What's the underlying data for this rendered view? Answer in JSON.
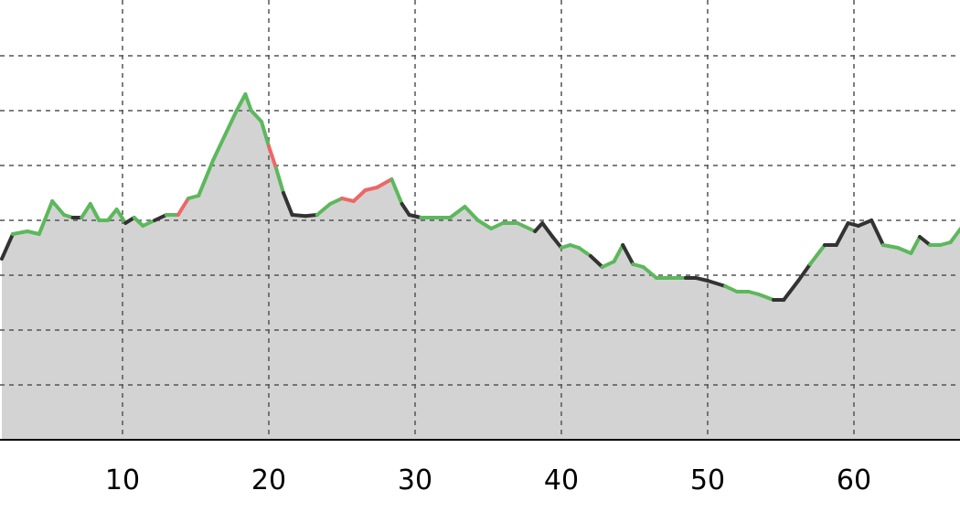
{
  "chart_data": {
    "type": "area",
    "title": "",
    "xlabel": "",
    "ylabel": "",
    "xlim": [
      1.75,
      67.3
    ],
    "ylim": [
      0,
      8
    ],
    "x_ticks": [
      10,
      20,
      30,
      40,
      50,
      60
    ],
    "x_tick_labels": [
      "10",
      "20",
      "30",
      "40",
      "50",
      "60"
    ],
    "grid": true,
    "legend": "none",
    "colors": {
      "area_fill": "#d3d3d3",
      "line_neutral": "#333333",
      "line_green": "#5cb85c",
      "line_red": "#ee6666",
      "axis": "#000000",
      "grid": "#555555"
    },
    "series": [
      {
        "values": [
          [
            1.75,
            3.3,
            "k"
          ],
          [
            2.5,
            3.75,
            "k"
          ],
          [
            3.5,
            3.8,
            "g"
          ],
          [
            4.3,
            3.75,
            "g"
          ],
          [
            5.2,
            4.35,
            "g"
          ],
          [
            6.0,
            4.1,
            "g"
          ],
          [
            6.6,
            4.05,
            "g"
          ],
          [
            7.2,
            4.05,
            "k"
          ],
          [
            7.8,
            4.3,
            "g"
          ],
          [
            8.4,
            4.0,
            "g"
          ],
          [
            9.0,
            4.0,
            "g"
          ],
          [
            9.6,
            4.2,
            "g"
          ],
          [
            10.2,
            3.95,
            "g"
          ],
          [
            10.8,
            4.05,
            "k"
          ],
          [
            11.4,
            3.9,
            "g"
          ],
          [
            12.2,
            4.0,
            "g"
          ],
          [
            13.0,
            4.1,
            "k"
          ],
          [
            13.8,
            4.1,
            "g"
          ],
          [
            14.5,
            4.4,
            "r"
          ],
          [
            15.2,
            4.45,
            "g"
          ],
          [
            16.2,
            5.1,
            "g"
          ],
          [
            17.0,
            5.55,
            "g"
          ],
          [
            17.8,
            6.0,
            "g"
          ],
          [
            18.4,
            6.3,
            "g"
          ],
          [
            18.8,
            6.0,
            "g"
          ],
          [
            19.5,
            5.8,
            "g"
          ],
          [
            20.0,
            5.35,
            "g"
          ],
          [
            20.5,
            4.95,
            "r"
          ],
          [
            21.0,
            4.5,
            "g"
          ],
          [
            21.6,
            4.1,
            "k"
          ],
          [
            22.5,
            4.08,
            "k"
          ],
          [
            23.3,
            4.1,
            "k"
          ],
          [
            24.2,
            4.3,
            "g"
          ],
          [
            25.0,
            4.4,
            "g"
          ],
          [
            25.8,
            4.35,
            "r"
          ],
          [
            26.6,
            4.55,
            "r"
          ],
          [
            27.4,
            4.6,
            "r"
          ],
          [
            28.4,
            4.75,
            "r"
          ],
          [
            29.1,
            4.3,
            "g"
          ],
          [
            29.6,
            4.1,
            "k"
          ],
          [
            30.4,
            4.05,
            "k"
          ],
          [
            31.0,
            4.05,
            "g"
          ],
          [
            32.4,
            4.05,
            "g"
          ],
          [
            33.4,
            4.25,
            "g"
          ],
          [
            34.3,
            4.0,
            "g"
          ],
          [
            35.2,
            3.85,
            "g"
          ],
          [
            36.0,
            3.95,
            "g"
          ],
          [
            37.0,
            3.95,
            "g"
          ],
          [
            38.2,
            3.8,
            "g"
          ],
          [
            38.7,
            3.95,
            "k"
          ],
          [
            39.4,
            3.7,
            "k"
          ],
          [
            40.0,
            3.5,
            "k"
          ],
          [
            40.6,
            3.55,
            "g"
          ],
          [
            41.2,
            3.5,
            "g"
          ],
          [
            42.0,
            3.35,
            "g"
          ],
          [
            42.8,
            3.15,
            "k"
          ],
          [
            43.6,
            3.25,
            "g"
          ],
          [
            44.2,
            3.55,
            "g"
          ],
          [
            44.9,
            3.2,
            "k"
          ],
          [
            45.6,
            3.15,
            "g"
          ],
          [
            46.5,
            2.95,
            "g"
          ],
          [
            47.5,
            2.95,
            "g"
          ],
          [
            48.5,
            2.95,
            "g"
          ],
          [
            49.2,
            2.95,
            "k"
          ],
          [
            50.0,
            2.9,
            "k"
          ],
          [
            51.2,
            2.8,
            "k"
          ],
          [
            52.0,
            2.7,
            "g"
          ],
          [
            52.8,
            2.7,
            "g"
          ],
          [
            53.5,
            2.65,
            "g"
          ],
          [
            54.5,
            2.55,
            "g"
          ],
          [
            55.2,
            2.55,
            "k"
          ],
          [
            56.2,
            2.9,
            "k"
          ],
          [
            57.0,
            3.2,
            "k"
          ],
          [
            58.0,
            3.55,
            "g"
          ],
          [
            58.8,
            3.55,
            "k"
          ],
          [
            59.6,
            3.95,
            "k"
          ],
          [
            60.3,
            3.9,
            "k"
          ],
          [
            61.2,
            4.0,
            "k"
          ],
          [
            62.0,
            3.55,
            "k"
          ],
          [
            63.0,
            3.5,
            "g"
          ],
          [
            63.9,
            3.4,
            "g"
          ],
          [
            64.5,
            3.7,
            "g"
          ],
          [
            65.2,
            3.55,
            "k"
          ],
          [
            65.9,
            3.55,
            "g"
          ],
          [
            66.6,
            3.6,
            "g"
          ],
          [
            67.3,
            3.85,
            "g"
          ]
        ]
      }
    ]
  }
}
